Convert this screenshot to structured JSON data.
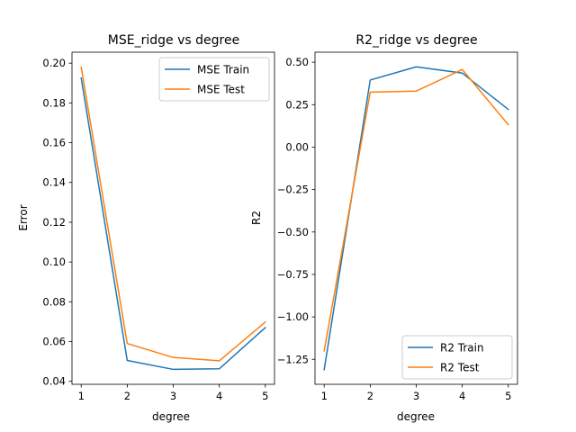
{
  "chart_data": [
    {
      "type": "line",
      "title": "MSE_ridge vs degree",
      "xlabel": "degree",
      "ylabel": "Error",
      "x": [
        1,
        2,
        3,
        4,
        5
      ],
      "xlim": [
        0.8,
        5.2
      ],
      "ylim": [
        0.0385,
        0.2055
      ],
      "xticks": [
        1,
        2,
        3,
        4,
        5
      ],
      "xtick_labels": [
        "1",
        "2",
        "3",
        "4",
        "5"
      ],
      "yticks": [
        0.04,
        0.06,
        0.08,
        0.1,
        0.12,
        0.14,
        0.16,
        0.18,
        0.2
      ],
      "ytick_labels": [
        "0.04",
        "0.06",
        "0.08",
        "0.10",
        "0.12",
        "0.14",
        "0.16",
        "0.18",
        "0.20"
      ],
      "legend": "upper right",
      "grid": false,
      "series": [
        {
          "name": "MSE Train",
          "color": "#1f77b4",
          "values": [
            0.1925,
            0.0505,
            0.046,
            0.0463,
            0.067
          ]
        },
        {
          "name": "MSE Test",
          "color": "#ff7f0e",
          "values": [
            0.198,
            0.059,
            0.052,
            0.0503,
            0.0698
          ]
        }
      ]
    },
    {
      "type": "line",
      "title": "R2_ridge vs degree",
      "xlabel": "degree",
      "ylabel": "R2",
      "x": [
        1,
        2,
        3,
        4,
        5
      ],
      "xlim": [
        0.8,
        5.2
      ],
      "ylim": [
        -1.397,
        0.559
      ],
      "xticks": [
        1,
        2,
        3,
        4,
        5
      ],
      "xtick_labels": [
        "1",
        "2",
        "3",
        "4",
        "5"
      ],
      "yticks": [
        -1.25,
        -1.0,
        -0.75,
        -0.5,
        -0.25,
        0.0,
        0.25,
        0.5
      ],
      "ytick_labels": [
        "−1.25",
        "−1.00",
        "−0.75",
        "−0.50",
        "−0.25",
        "0.00",
        "0.25",
        "0.50"
      ],
      "legend": "lower right",
      "grid": false,
      "series": [
        {
          "name": "R2 Train",
          "color": "#1f77b4",
          "values": [
            -1.31,
            0.395,
            0.473,
            0.436,
            0.222
          ]
        },
        {
          "name": "R2 Test",
          "color": "#ff7f0e",
          "values": [
            -1.2,
            0.324,
            0.33,
            0.457,
            0.132
          ]
        }
      ]
    }
  ]
}
